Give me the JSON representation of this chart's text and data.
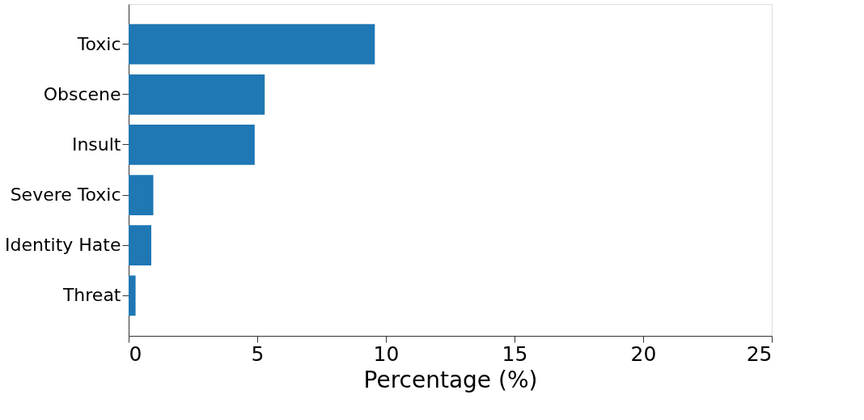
{
  "chart_data": {
    "type": "bar",
    "orientation": "horizontal",
    "xlabel": "Percentage (%)",
    "categories": [
      "Toxic",
      "Obscene",
      "Insult",
      "Severe Toxic",
      "Identity Hate",
      "Threat"
    ],
    "values": [
      9.57,
      5.29,
      4.9,
      0.96,
      0.88,
      0.27
    ],
    "color": "#1f77b4",
    "xlim": [
      0,
      25
    ],
    "xticks": [
      0,
      5,
      10,
      15,
      20,
      25
    ],
    "grid": false
  }
}
